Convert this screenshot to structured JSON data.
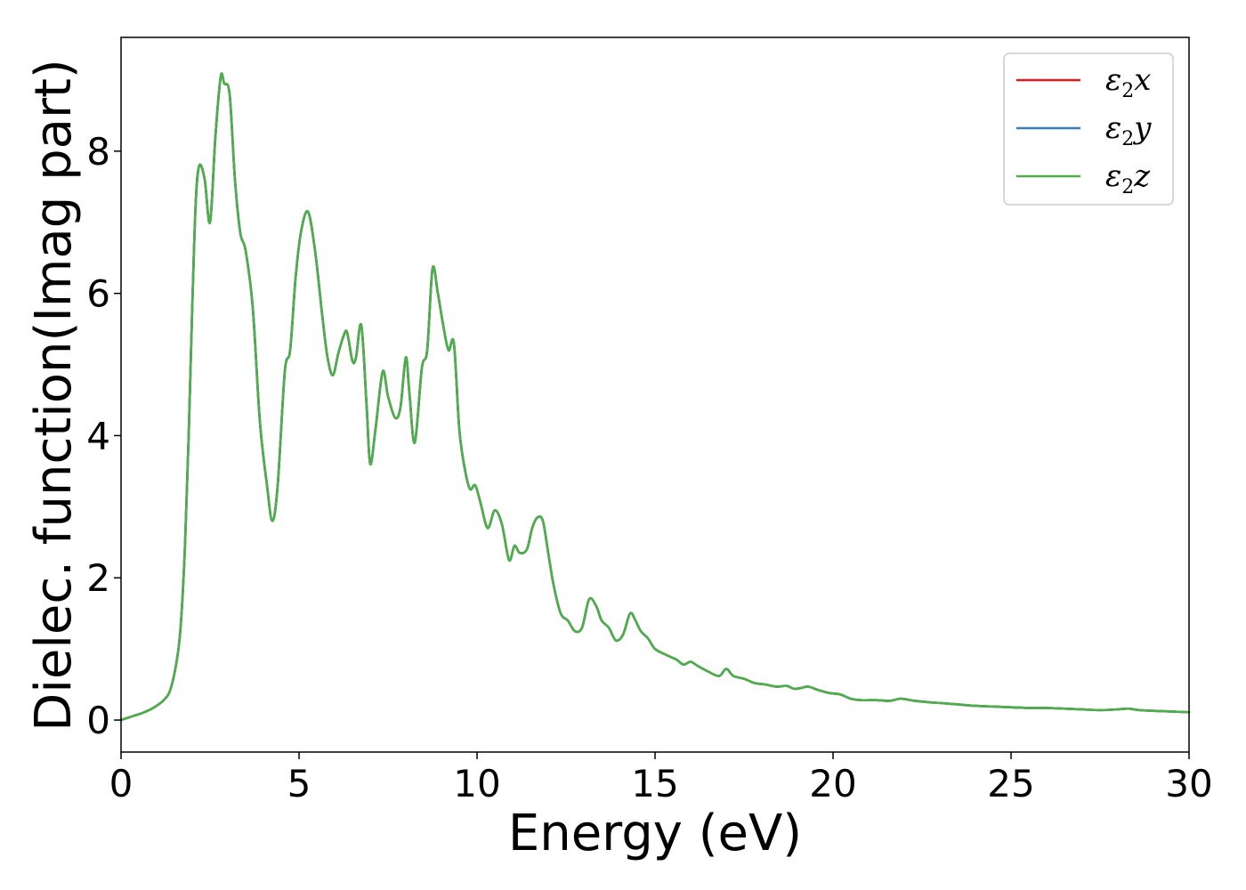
{
  "chart_data": {
    "type": "line",
    "xlabel": "Energy (eV)",
    "ylabel": "Dielec. function(Imag part)",
    "xlim": [
      0,
      30
    ],
    "ylim": [
      -0.45,
      9.6
    ],
    "xticks": [
      0,
      5,
      10,
      15,
      20,
      25,
      30
    ],
    "yticks": [
      0,
      2,
      4,
      6,
      8
    ],
    "xtick_labels": [
      "0",
      "5",
      "10",
      "15",
      "20",
      "25",
      "30"
    ],
    "ytick_labels": [
      "0",
      "2",
      "4",
      "6",
      "8"
    ],
    "grid": false,
    "legend_position": "top-right",
    "series_colors": [
      "#e41a1c",
      "#377eb8",
      "#4daf4a"
    ],
    "series": [
      {
        "name": "ε2x",
        "legend": {
          "base": "ε",
          "sub": "2",
          "tail": "x"
        }
      },
      {
        "name": "ε2y",
        "legend": {
          "base": "ε",
          "sub": "2",
          "tail": "y"
        }
      },
      {
        "name": "ε2z",
        "legend": {
          "base": "ε",
          "sub": "2",
          "tail": "z"
        }
      }
    ],
    "x": [
      0,
      0.3,
      0.6,
      0.9,
      1.2,
      1.4,
      1.6,
      1.7,
      1.8,
      1.9,
      2.0,
      2.1,
      2.2,
      2.35,
      2.5,
      2.65,
      2.8,
      2.9,
      3.05,
      3.2,
      3.35,
      3.5,
      3.7,
      3.9,
      4.1,
      4.25,
      4.4,
      4.6,
      4.75,
      4.9,
      5.05,
      5.25,
      5.45,
      5.65,
      5.8,
      5.95,
      6.1,
      6.25,
      6.35,
      6.5,
      6.6,
      6.75,
      6.9,
      7.0,
      7.15,
      7.35,
      7.5,
      7.7,
      7.85,
      8.0,
      8.1,
      8.25,
      8.45,
      8.6,
      8.75,
      8.9,
      9.05,
      9.2,
      9.35,
      9.5,
      9.65,
      9.8,
      9.95,
      10.1,
      10.3,
      10.5,
      10.7,
      10.9,
      11.05,
      11.2,
      11.4,
      11.55,
      11.7,
      11.85,
      12.0,
      12.15,
      12.35,
      12.55,
      12.75,
      12.95,
      13.15,
      13.35,
      13.5,
      13.7,
      13.9,
      14.1,
      14.3,
      14.45,
      14.6,
      14.8,
      15.0,
      15.3,
      15.6,
      15.8,
      16.0,
      16.2,
      16.5,
      16.8,
      17.0,
      17.2,
      17.5,
      17.8,
      18.1,
      18.4,
      18.7,
      18.9,
      19.1,
      19.3,
      19.6,
      19.9,
      20.2,
      20.5,
      20.8,
      21.2,
      21.6,
      21.9,
      22.3,
      22.7,
      23.0,
      23.5,
      24.0,
      24.5,
      25.0,
      25.5,
      26.0,
      26.5,
      27.0,
      27.5,
      28.0,
      28.3,
      28.6,
      29.0,
      29.5,
      30.0
    ],
    "values": [
      0.0,
      0.05,
      0.1,
      0.17,
      0.28,
      0.45,
      0.95,
      1.5,
      2.5,
      4.0,
      5.8,
      7.3,
      7.8,
      7.6,
      7.0,
      8.2,
      9.05,
      8.95,
      8.8,
      7.6,
      6.85,
      6.6,
      5.8,
      4.2,
      3.3,
      2.8,
      3.3,
      4.9,
      5.2,
      6.2,
      6.85,
      7.15,
      6.6,
      5.7,
      5.1,
      4.85,
      5.15,
      5.4,
      5.45,
      5.05,
      5.1,
      5.55,
      4.4,
      3.6,
      4.1,
      4.9,
      4.55,
      4.25,
      4.4,
      5.1,
      4.6,
      3.9,
      4.95,
      5.2,
      6.35,
      6.0,
      5.55,
      5.2,
      5.3,
      4.1,
      3.55,
      3.25,
      3.3,
      3.05,
      2.7,
      2.95,
      2.75,
      2.25,
      2.45,
      2.35,
      2.4,
      2.7,
      2.85,
      2.8,
      2.35,
      1.9,
      1.5,
      1.4,
      1.25,
      1.3,
      1.7,
      1.6,
      1.4,
      1.3,
      1.12,
      1.2,
      1.5,
      1.4,
      1.25,
      1.15,
      1.0,
      0.92,
      0.85,
      0.78,
      0.82,
      0.76,
      0.68,
      0.62,
      0.72,
      0.62,
      0.58,
      0.52,
      0.5,
      0.47,
      0.48,
      0.44,
      0.45,
      0.47,
      0.42,
      0.38,
      0.36,
      0.3,
      0.28,
      0.28,
      0.27,
      0.3,
      0.27,
      0.25,
      0.24,
      0.22,
      0.2,
      0.19,
      0.18,
      0.17,
      0.17,
      0.16,
      0.15,
      0.14,
      0.15,
      0.16,
      0.14,
      0.13,
      0.12,
      0.11
    ]
  }
}
